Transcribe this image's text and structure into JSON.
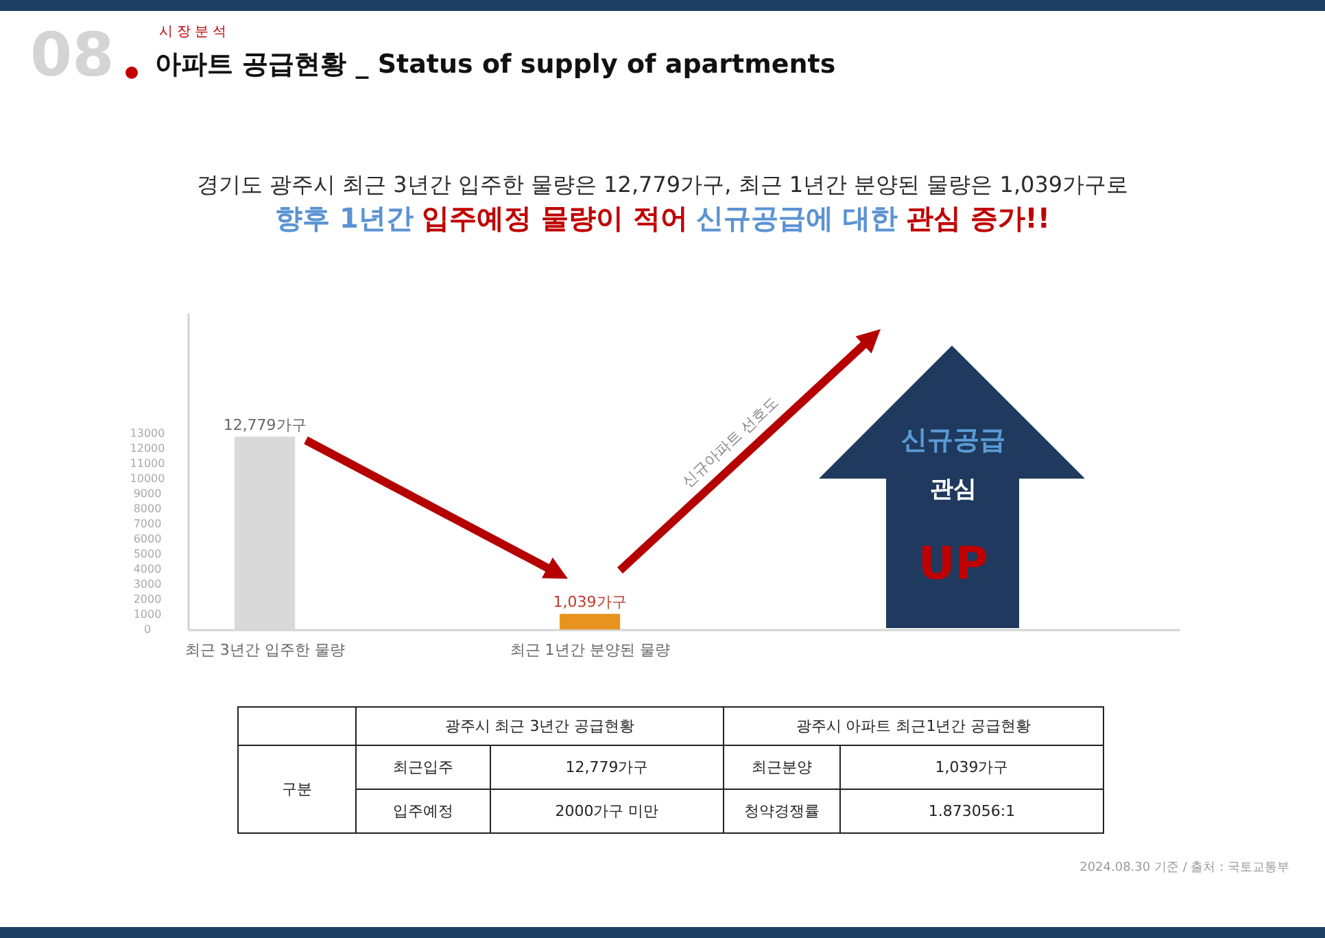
{
  "chart_data": [
    {
      "type": "bar",
      "title": "아파트 공급현황 _ Status of supply of apartments",
      "subtitle": "시장분석",
      "categories": [
        "최근 3년간 입주한 물량",
        "최근 1년간 분양된 물량"
      ],
      "values": [
        12779,
        1039
      ],
      "colors": [
        "#d9d9d9",
        "#e8931f"
      ],
      "value_labels": [
        "12,779가구",
        "1,039가구"
      ],
      "ylim": [
        0,
        21000
      ],
      "yticks": [
        0,
        1000,
        2000,
        3000,
        4000,
        5000,
        6000,
        7000,
        8000,
        9000,
        10000,
        11000,
        12000,
        13000
      ],
      "grid": false,
      "annotations": [
        "08",
        "경기도 광주시 최근 3년간 입주한 물량은 12,779가구, 최근 1년간 분양된 물량은 1,039가구로",
        "향후 1년간",
        "입주예정 물량이 적어",
        "신규공급에 대한",
        "관심 증가!!",
        "신규아파트 선호도",
        "신규공급",
        "관심",
        "UP",
        "2024.08.30 기준 / 출처 : 국토교통부"
      ]
    },
    {
      "type": "other",
      "annotations": [
        "구분",
        "광주시 최근 3년간 공급현황",
        "광주시 아파트 최근1년간 공급현황",
        "최근입주",
        "12,779가구",
        "최근분양",
        "1,039가구",
        "입주예정",
        "2000가구 미만",
        "청약경쟁률",
        "1.873056:1"
      ]
    }
  ]
}
